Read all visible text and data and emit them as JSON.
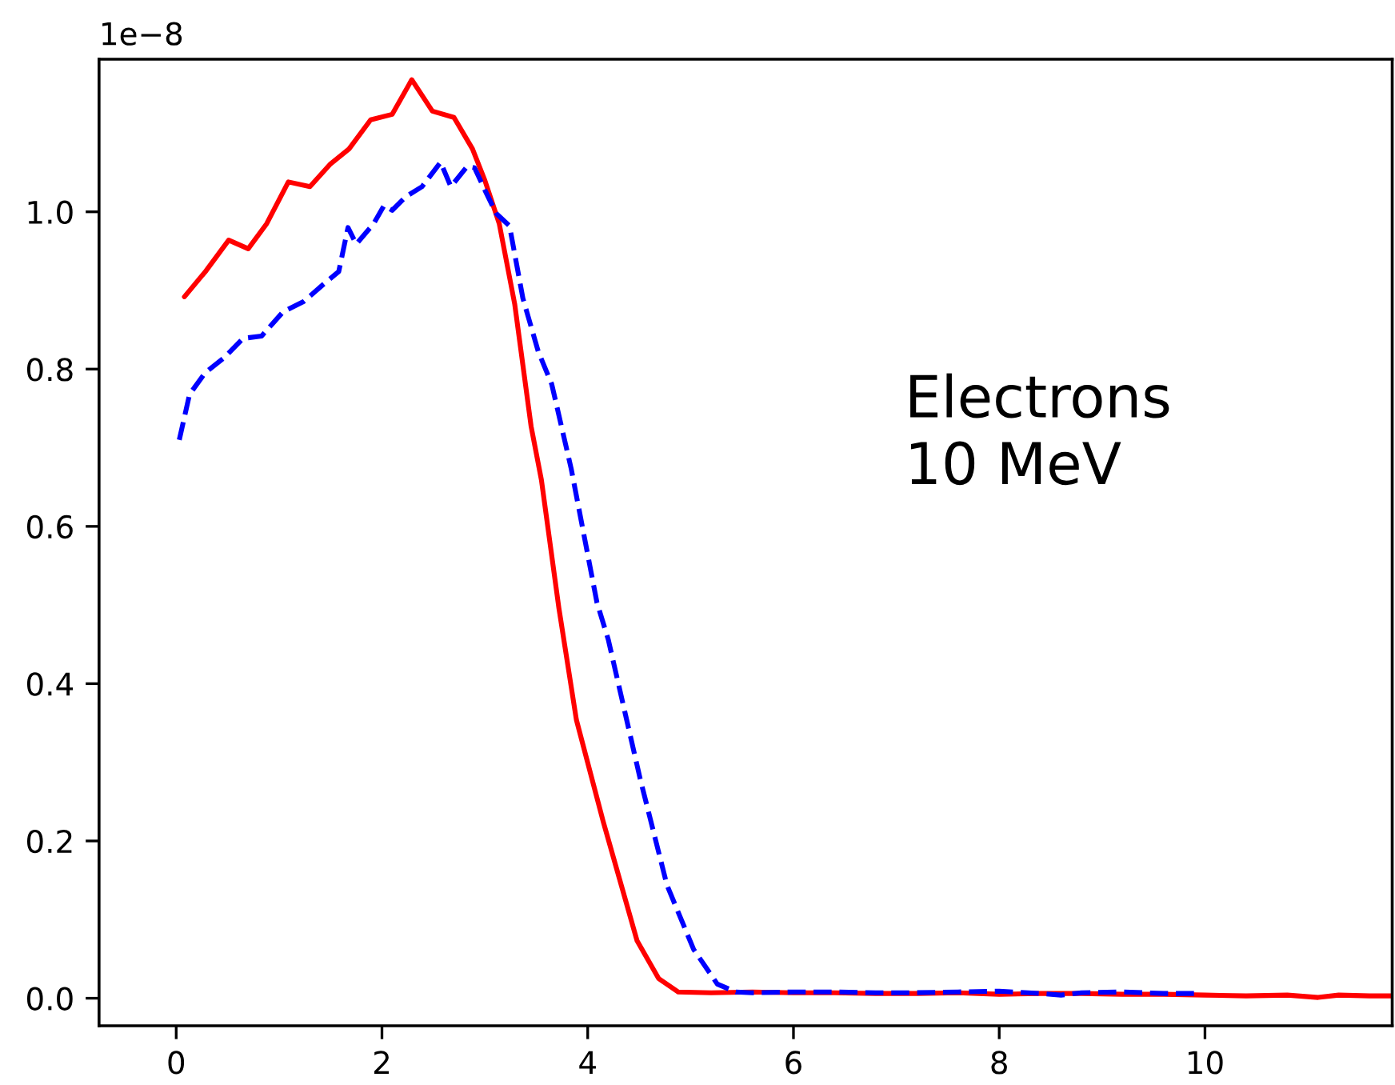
{
  "chart_data": {
    "type": "line",
    "xlim": [
      -0.75,
      11.82
    ],
    "ylim": [
      -0.035,
      1.194
    ],
    "xticks": [
      0,
      2,
      4,
      6,
      8,
      10
    ],
    "yticks": [
      {
        "value": 0,
        "label": "0.0"
      },
      0.2,
      0.4,
      0.6,
      0.8,
      {
        "value": 1,
        "label": "1.0"
      }
    ],
    "annotations": [
      "1e−8",
      "Electrons\n10 MeV"
    ],
    "series": [
      {
        "color": "#ff0000",
        "line_style": "solid",
        "x": [
          0.08,
          0.29,
          0.51,
          0.7,
          0.88,
          1.09,
          1.3,
          1.5,
          1.68,
          1.89,
          2.1,
          2.29,
          2.49,
          2.7,
          2.88,
          3.0,
          3.14,
          3.29,
          3.45,
          3.55,
          3.72,
          3.89,
          4.15,
          4.48,
          4.69,
          4.88,
          5.2,
          5.6,
          6.0,
          6.4,
          6.8,
          7.2,
          7.6,
          8.0,
          8.4,
          8.8,
          9.2,
          9.6,
          10.0,
          10.4,
          10.8,
          11.1,
          11.3,
          11.6,
          11.82
        ],
        "values": [
          0.892,
          0.925,
          0.964,
          0.953,
          0.985,
          1.038,
          1.032,
          1.061,
          1.08,
          1.117,
          1.124,
          1.168,
          1.128,
          1.12,
          1.08,
          1.04,
          0.985,
          0.883,
          0.727,
          0.659,
          0.496,
          0.354,
          0.225,
          0.073,
          0.025,
          0.008,
          0.007,
          0.008,
          0.007,
          0.007,
          0.006,
          0.006,
          0.007,
          0.005,
          0.006,
          0.006,
          0.005,
          0.005,
          0.004,
          0.003,
          0.004,
          0.001,
          0.004,
          0.003,
          0.003
        ]
      },
      {
        "color": "#0000ff",
        "line_style": "dashed",
        "x": [
          0.03,
          0.13,
          0.28,
          0.47,
          0.65,
          0.83,
          1.04,
          1.24,
          1.45,
          1.58,
          1.67,
          1.75,
          1.92,
          2.02,
          2.1,
          2.23,
          2.39,
          2.57,
          2.67,
          2.83,
          2.9,
          3.01,
          3.11,
          3.24,
          3.37,
          3.52,
          3.65,
          3.84,
          4.09,
          4.2,
          4.51,
          4.77,
          5.03,
          5.26,
          5.44,
          5.6,
          6.0,
          6.4,
          6.8,
          7.2,
          7.6,
          8.0,
          8.4,
          8.6,
          8.8,
          9.2,
          9.6,
          9.95
        ],
        "values": [
          0.71,
          0.768,
          0.795,
          0.815,
          0.839,
          0.842,
          0.873,
          0.886,
          0.91,
          0.924,
          0.98,
          0.959,
          0.985,
          1.008,
          1.002,
          1.019,
          1.032,
          1.063,
          1.032,
          1.058,
          1.056,
          1.025,
          0.998,
          0.982,
          0.89,
          0.822,
          0.781,
          0.673,
          0.503,
          0.456,
          0.279,
          0.144,
          0.062,
          0.018,
          0.008,
          0.007,
          0.008,
          0.008,
          0.007,
          0.007,
          0.008,
          0.009,
          0.006,
          0.004,
          0.007,
          0.008,
          0.006,
          0.006
        ]
      }
    ]
  }
}
